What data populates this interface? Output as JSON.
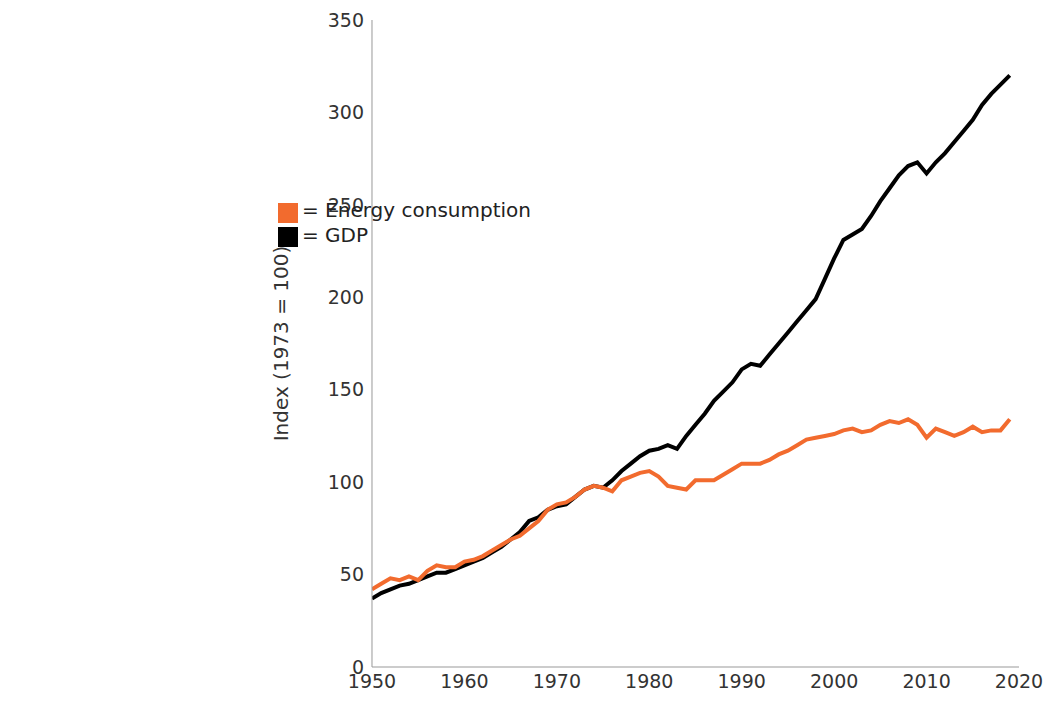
{
  "chart_data": {
    "type": "line",
    "y_label": "Index (1973 = 100)",
    "x": [
      1950,
      1951,
      1952,
      1953,
      1954,
      1955,
      1956,
      1957,
      1958,
      1959,
      1960,
      1961,
      1962,
      1963,
      1964,
      1965,
      1966,
      1967,
      1968,
      1969,
      1970,
      1971,
      1972,
      1973,
      1974,
      1975,
      1976,
      1977,
      1978,
      1979,
      1980,
      1981,
      1982,
      1983,
      1984,
      1985,
      1986,
      1987,
      1988,
      1989,
      1990,
      1991,
      1992,
      1993,
      1994,
      1995,
      1996,
      1997,
      1998,
      1999,
      2000,
      2001,
      2002,
      2003,
      2004,
      2005,
      2006,
      2007,
      2008,
      2009,
      2010,
      2011,
      2012,
      2013,
      2014,
      2015,
      2016,
      2017,
      2018,
      2019
    ],
    "series": [
      {
        "name": "= GDP",
        "color": "#000000",
        "values": [
          37,
          40,
          42,
          44,
          45,
          47,
          49,
          51,
          51,
          53,
          55,
          57,
          59,
          62,
          65,
          69,
          73,
          79,
          81,
          85,
          87,
          88,
          92,
          96,
          98,
          97,
          101,
          106,
          110,
          114,
          117,
          118,
          120,
          118,
          125,
          131,
          137,
          144,
          149,
          154,
          161,
          164,
          163,
          169,
          175,
          181,
          187,
          193,
          199,
          210,
          221,
          231,
          234,
          237,
          244,
          252,
          259,
          266,
          271,
          273,
          267,
          273,
          278,
          284,
          290,
          296,
          304,
          310,
          315,
          320
        ]
      },
      {
        "name": "= Energy consumption",
        "color": "#f26b2e",
        "values": [
          42,
          45,
          48,
          47,
          49,
          47,
          52,
          55,
          54,
          54,
          57,
          58,
          60,
          63,
          66,
          69,
          71,
          75,
          79,
          85,
          88,
          89,
          92,
          96,
          98,
          97,
          95,
          101,
          103,
          105,
          106,
          103,
          98,
          97,
          96,
          101,
          101,
          101,
          104,
          107,
          110,
          110,
          110,
          112,
          115,
          117,
          120,
          123,
          124,
          125,
          126,
          128,
          129,
          127,
          128,
          131,
          133,
          132,
          134,
          131,
          124,
          129,
          127,
          125,
          127,
          130,
          127,
          128,
          128,
          134
        ]
      }
    ],
    "xlim": [
      1950,
      2020
    ],
    "xticks": [
      1950,
      1960,
      1970,
      1980,
      1990,
      2000,
      2010,
      2020
    ],
    "ylim": [
      0,
      350
    ],
    "yticks": [
      0,
      50,
      100,
      150,
      200,
      250,
      300,
      350
    ],
    "grid": false,
    "legend": "upper left"
  }
}
